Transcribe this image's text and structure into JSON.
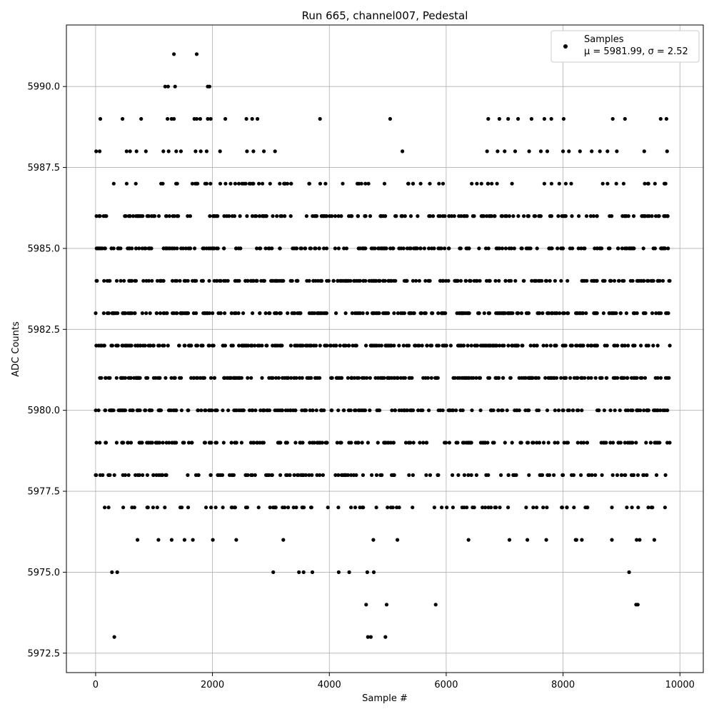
{
  "chart_data": {
    "type": "scatter",
    "title": "Run 665, channel007, Pedestal",
    "xlabel": "Sample #",
    "ylabel": "ADC Counts",
    "xlim": [
      -500,
      10400
    ],
    "ylim": [
      5971.9,
      5991.9
    ],
    "xticks": [
      0,
      2000,
      4000,
      6000,
      8000,
      10000
    ],
    "xtick_labels": [
      "0",
      "2000",
      "4000",
      "6000",
      "8000",
      "10000"
    ],
    "yticks": [
      5972.5,
      5975.0,
      5977.5,
      5980.0,
      5982.5,
      5985.0,
      5987.5,
      5990.0
    ],
    "ytick_labels": [
      "5972.5",
      "5975.0",
      "5977.5",
      "5980.0",
      "5982.5",
      "5985.0",
      "5987.5",
      "5990.0"
    ],
    "grid": true,
    "marker_color": "#000000",
    "legend": {
      "placement": "upper right",
      "entries": [
        {
          "label": "Samples",
          "sublabel": "μ = 5981.99, σ = 2.52"
        }
      ]
    },
    "series": [
      {
        "name": "Samples",
        "x_range": [
          0,
          9840
        ],
        "points": [
          [
            320,
            5973
          ],
          [
            4660,
            5973
          ],
          [
            4710,
            5973
          ],
          [
            4960,
            5973
          ],
          [
            4630,
            5974
          ],
          [
            4980,
            5974
          ],
          [
            5820,
            5974
          ],
          [
            9250,
            5974
          ],
          [
            9280,
            5974
          ],
          [
            280,
            5975
          ],
          [
            370,
            5975
          ],
          [
            3040,
            5975
          ],
          [
            3480,
            5975
          ],
          [
            3560,
            5975
          ],
          [
            3710,
            5975
          ],
          [
            4160,
            5975
          ],
          [
            4340,
            5975
          ],
          [
            4650,
            5975
          ],
          [
            4760,
            5975
          ],
          [
            9130,
            5975
          ],
          [
            1340,
            5991
          ],
          [
            1730,
            5991
          ],
          [
            1190,
            5990
          ],
          [
            1240,
            5990
          ],
          [
            1360,
            5990
          ],
          [
            1920,
            5990
          ],
          [
            1950,
            5990
          ],
          [
            80,
            5989
          ],
          [
            460,
            5989
          ],
          [
            780,
            5989
          ],
          [
            1230,
            5989
          ],
          [
            1300,
            5989
          ],
          [
            1340,
            5989
          ],
          [
            1690,
            5989
          ],
          [
            1730,
            5989
          ],
          [
            1790,
            5989
          ],
          [
            1920,
            5989
          ],
          [
            1970,
            5989
          ],
          [
            2220,
            5989
          ],
          [
            2580,
            5989
          ],
          [
            2680,
            5989
          ],
          [
            2770,
            5989
          ],
          [
            3840,
            5989
          ],
          [
            5040,
            5989
          ],
          [
            6720,
            5989
          ],
          [
            6910,
            5989
          ],
          [
            7060,
            5989
          ],
          [
            7230,
            5989
          ],
          [
            7460,
            5989
          ],
          [
            7680,
            5989
          ],
          [
            7800,
            5989
          ],
          [
            8010,
            5989
          ],
          [
            8850,
            5989
          ],
          [
            9060,
            5989
          ],
          [
            9670,
            5989
          ],
          [
            9770,
            5989
          ],
          [
            10,
            5988
          ],
          [
            70,
            5988
          ],
          [
            530,
            5988
          ],
          [
            590,
            5988
          ],
          [
            700,
            5988
          ],
          [
            860,
            5988
          ],
          [
            1160,
            5988
          ],
          [
            1250,
            5988
          ],
          [
            1380,
            5988
          ],
          [
            1460,
            5988
          ],
          [
            1710,
            5988
          ],
          [
            1800,
            5988
          ],
          [
            1900,
            5988
          ],
          [
            2130,
            5988
          ],
          [
            2590,
            5988
          ],
          [
            2700,
            5988
          ],
          [
            2880,
            5988
          ],
          [
            3070,
            5988
          ],
          [
            5250,
            5988
          ],
          [
            6700,
            5988
          ],
          [
            6880,
            5988
          ],
          [
            7000,
            5988
          ],
          [
            7180,
            5988
          ],
          [
            7420,
            5988
          ],
          [
            7620,
            5988
          ],
          [
            7730,
            5988
          ],
          [
            8000,
            5988
          ],
          [
            8100,
            5988
          ],
          [
            8290,
            5988
          ],
          [
            8490,
            5988
          ],
          [
            8630,
            5988
          ],
          [
            8760,
            5988
          ],
          [
            8920,
            5988
          ],
          [
            9390,
            5988
          ],
          [
            9780,
            5988
          ]
        ],
        "levels": [
          5976,
          5977,
          5978,
          5979,
          5980,
          5981,
          5982,
          5983,
          5984,
          5985,
          5986,
          5987
        ]
      }
    ]
  }
}
